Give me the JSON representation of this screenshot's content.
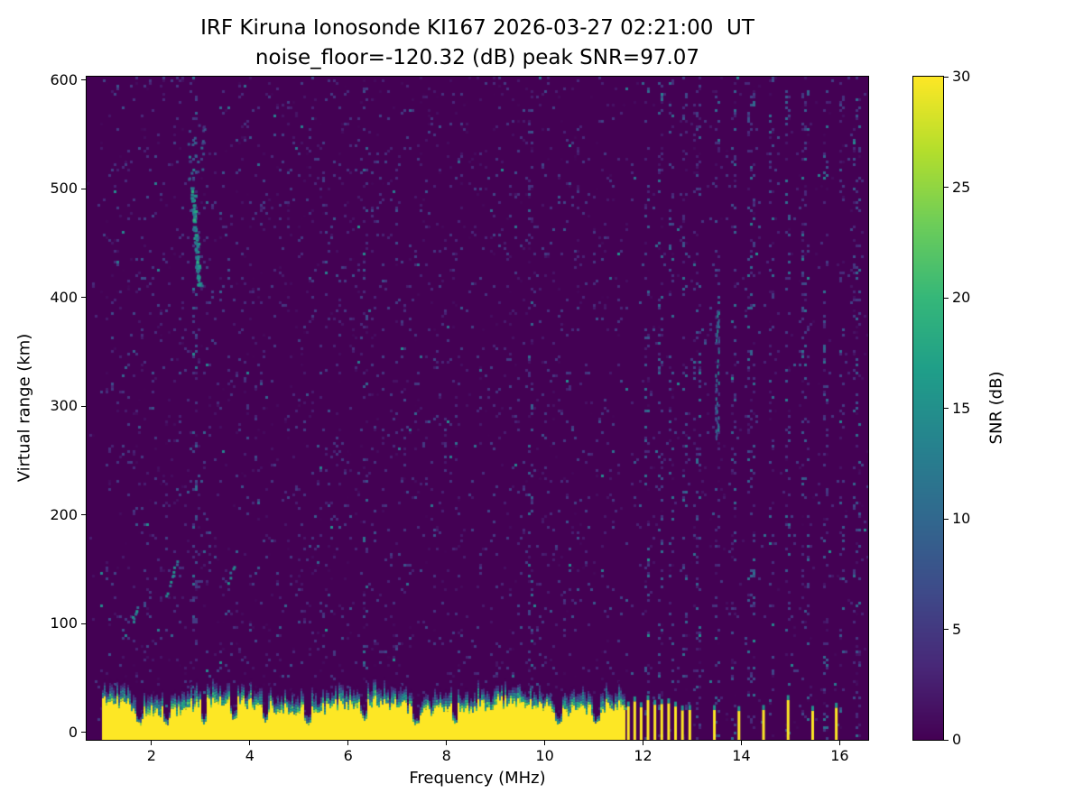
{
  "chart_data": {
    "type": "heatmap",
    "title": "IRF Kiruna Ionosonde KI167 2026-03-27 02:21:00  UT",
    "subtitle": "noise_floor=-120.32 (dB) peak SNR=97.07",
    "xlabel": "Frequency (MHz)",
    "ylabel": "Virtual range (km)",
    "x_range": [
      0.68,
      16.58
    ],
    "y_range": [
      -7,
      603
    ],
    "x_ticks": [
      2,
      4,
      6,
      8,
      10,
      12,
      14,
      16
    ],
    "y_ticks": [
      0,
      100,
      200,
      300,
      400,
      500,
      600
    ],
    "colorbar": {
      "label": "SNR (dB)",
      "min": 0,
      "max": 30,
      "ticks": [
        0,
        5,
        10,
        15,
        20,
        25,
        30
      ],
      "colormap": "viridis"
    },
    "readings": {
      "station": "KI167",
      "timestamp_ut": "2026-03-27 02:21:00",
      "noise_floor_db": -120.32,
      "peak_snr_db": 97.07
    },
    "features": {
      "background_snr_db": 0,
      "speckle_density": 0.055,
      "ground_clutter_band": {
        "freq_start": 1.0,
        "freq_end": 11.63,
        "top_km_mean": 24,
        "top_km_jitter": 9,
        "fringe_km": 13,
        "snr_db": 30
      },
      "band_notches_mhz": [
        1.75,
        2.3,
        3.05,
        3.65,
        4.3,
        5.15,
        6.3,
        7.35,
        8.15,
        10.25,
        11.05
      ],
      "discrete_bars_mhz": [
        11.7,
        11.83,
        11.96,
        12.1,
        12.24,
        12.38,
        12.52,
        12.66,
        12.8,
        12.95,
        13.45,
        13.95,
        14.45,
        14.95,
        15.45,
        15.93
      ],
      "echo_trace": {
        "freq_start": 2.95,
        "freq_end": 2.82,
        "km_start": 412,
        "km_end": 498,
        "tail_km": 565,
        "snr_db": 15
      },
      "minor_echoes": [
        {
          "freq_start": 1.62,
          "freq_end": 1.7,
          "km_start": 104,
          "km_end": 118,
          "count": 6
        },
        {
          "freq_start": 2.3,
          "freq_end": 2.5,
          "km_start": 128,
          "km_end": 160,
          "count": 10
        },
        {
          "freq_start": 3.55,
          "freq_end": 3.65,
          "km_start": 140,
          "km_end": 152,
          "count": 5
        }
      ],
      "high_freq_blob": {
        "freq": 13.5,
        "km_start": 270,
        "km_end": 390
      },
      "noise_stripes_mhz": [
        2.9,
        6.35,
        9.7,
        12.1,
        12.35,
        12.6,
        12.85,
        13.1,
        13.5,
        13.85,
        14.2,
        14.6,
        14.95,
        15.3,
        15.7,
        16.05,
        16.35
      ]
    }
  }
}
